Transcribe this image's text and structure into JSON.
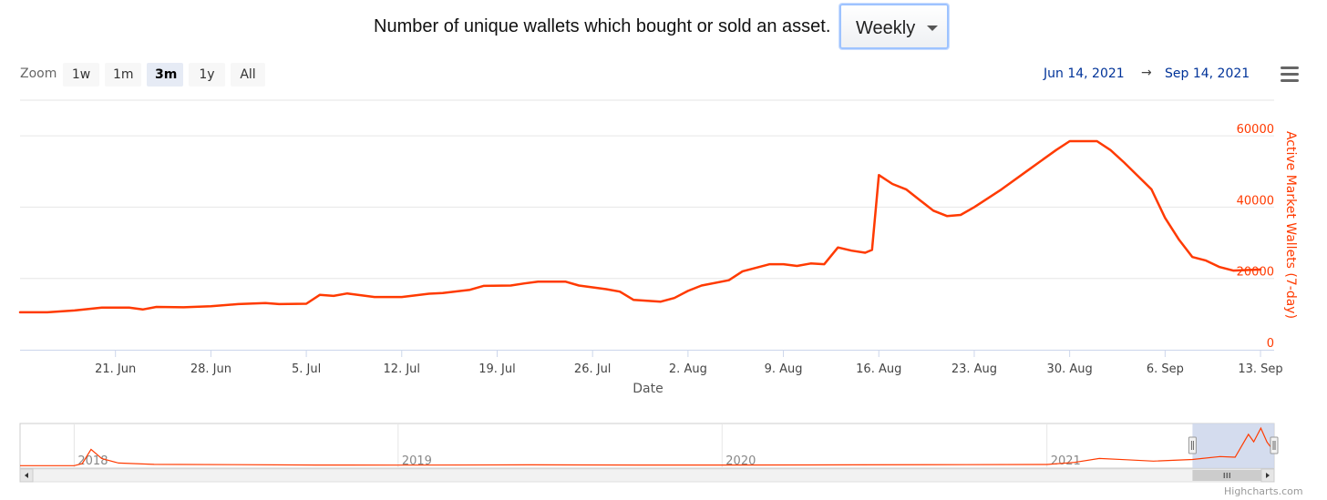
{
  "header": {
    "text": "Number of unique wallets which bought or sold an asset.",
    "select_value": "Weekly"
  },
  "zoom": {
    "label": "Zoom",
    "buttons": [
      "1w",
      "1m",
      "3m",
      "1y",
      "All"
    ],
    "active": "3m"
  },
  "range": {
    "from": "Jun 14, 2021",
    "arrow": "→",
    "to": "Sep 14, 2021"
  },
  "menu_icon": "hamburger-menu-icon",
  "credits": "Highcharts.com",
  "colors": {
    "series": "#ff3a00",
    "axis_title": "#ff3a00",
    "range_text": "#003399",
    "navigator_mask": "#ccd6eb"
  },
  "chart_data": {
    "type": "line",
    "title": "",
    "xlabel": "Date",
    "ylabel": "Active Market Wallets (7-day)",
    "xlim": [
      "2021-06-14",
      "2021-09-14"
    ],
    "ylim": [
      0,
      70000
    ],
    "y_ticks": [
      0,
      20000,
      40000,
      60000
    ],
    "y_tick_labels": [
      "0",
      "20000",
      "40000",
      "60000"
    ],
    "y_axis_side": "right",
    "x_ticks": [
      "2021-06-21",
      "2021-06-28",
      "2021-07-05",
      "2021-07-12",
      "2021-07-19",
      "2021-07-26",
      "2021-08-02",
      "2021-08-09",
      "2021-08-16",
      "2021-08-23",
      "2021-08-30",
      "2021-09-06",
      "2021-09-13"
    ],
    "x_tick_labels": [
      "21. Jun",
      "28. Jun",
      "5. Jul",
      "12. Jul",
      "19. Jul",
      "26. Jul",
      "2. Aug",
      "9. Aug",
      "16. Aug",
      "23. Aug",
      "30. Aug",
      "6. Sep",
      "13. Sep"
    ],
    "grid": true,
    "legend": "none",
    "series": [
      {
        "color": "#ff3a00",
        "points": [
          [
            "2021-06-14",
            10500
          ],
          [
            "2021-06-16",
            10500
          ],
          [
            "2021-06-18",
            11000
          ],
          [
            "2021-06-20",
            11800
          ],
          [
            "2021-06-22",
            11800
          ],
          [
            "2021-06-23",
            11300
          ],
          [
            "2021-06-24",
            12000
          ],
          [
            "2021-06-26",
            11900
          ],
          [
            "2021-06-28",
            12200
          ],
          [
            "2021-06-30",
            12800
          ],
          [
            "2021-07-02",
            13100
          ],
          [
            "2021-07-03",
            12800
          ],
          [
            "2021-07-05",
            12900
          ],
          [
            "2021-07-06",
            15400
          ],
          [
            "2021-07-07",
            15100
          ],
          [
            "2021-07-08",
            15800
          ],
          [
            "2021-07-10",
            14800
          ],
          [
            "2021-07-12",
            14800
          ],
          [
            "2021-07-14",
            15700
          ],
          [
            "2021-07-15",
            15900
          ],
          [
            "2021-07-17",
            16800
          ],
          [
            "2021-07-18",
            17900
          ],
          [
            "2021-07-20",
            18000
          ],
          [
            "2021-07-21",
            18600
          ],
          [
            "2021-07-22",
            19100
          ],
          [
            "2021-07-24",
            19100
          ],
          [
            "2021-07-25",
            18000
          ],
          [
            "2021-07-27",
            17000
          ],
          [
            "2021-07-28",
            16300
          ],
          [
            "2021-07-29",
            14000
          ],
          [
            "2021-07-31",
            13500
          ],
          [
            "2021-08-01",
            14500
          ],
          [
            "2021-08-02",
            16500
          ],
          [
            "2021-08-03",
            18000
          ],
          [
            "2021-08-05",
            19500
          ],
          [
            "2021-08-06",
            22000
          ],
          [
            "2021-08-08",
            24000
          ],
          [
            "2021-08-09",
            24000
          ],
          [
            "2021-08-10",
            23500
          ],
          [
            "2021-08-11",
            24200
          ],
          [
            "2021-08-12",
            24000
          ],
          [
            "2021-08-13",
            28700
          ],
          [
            "2021-08-14",
            27800
          ],
          [
            "2021-08-15",
            27200
          ],
          [
            "2021-08-15T12",
            28000
          ],
          [
            "2021-08-16",
            49000
          ],
          [
            "2021-08-17",
            46500
          ],
          [
            "2021-08-18",
            45000
          ],
          [
            "2021-08-19",
            42000
          ],
          [
            "2021-08-20",
            39000
          ],
          [
            "2021-08-21",
            37500
          ],
          [
            "2021-08-22",
            37800
          ],
          [
            "2021-08-23",
            40000
          ],
          [
            "2021-08-25",
            45000
          ],
          [
            "2021-08-27",
            50500
          ],
          [
            "2021-08-29",
            56000
          ],
          [
            "2021-08-30",
            58500
          ],
          [
            "2021-09-01",
            58500
          ],
          [
            "2021-09-02",
            56000
          ],
          [
            "2021-09-03",
            52500
          ],
          [
            "2021-09-05",
            45000
          ],
          [
            "2021-09-06",
            37000
          ],
          [
            "2021-09-07",
            31000
          ],
          [
            "2021-09-08",
            26000
          ],
          [
            "2021-09-09",
            25000
          ],
          [
            "2021-09-10",
            23200
          ],
          [
            "2021-09-11",
            22200
          ],
          [
            "2021-09-13",
            22500
          ]
        ]
      }
    ],
    "navigator": {
      "x_labels": [
        "2018",
        "2019",
        "2020",
        "2021"
      ],
      "xlim": [
        "2017-11-01",
        "2021-09-14"
      ],
      "selected_range": [
        "2021-06-14",
        "2021-09-14"
      ],
      "points": [
        [
          "2017-11-01",
          1000
        ],
        [
          "2018-01-01",
          1000
        ],
        [
          "2018-01-10",
          4000
        ],
        [
          "2018-01-20",
          26000
        ],
        [
          "2018-02-01",
          12000
        ],
        [
          "2018-02-20",
          5000
        ],
        [
          "2018-04-01",
          3000
        ],
        [
          "2018-07-01",
          2500
        ],
        [
          "2018-10-01",
          2000
        ],
        [
          "2019-01-01",
          1800
        ],
        [
          "2019-06-01",
          2200
        ],
        [
          "2019-10-01",
          2000
        ],
        [
          "2020-01-01",
          2000
        ],
        [
          "2020-06-01",
          2200
        ],
        [
          "2020-10-01",
          2500
        ],
        [
          "2021-01-01",
          2800
        ],
        [
          "2021-02-01",
          6000
        ],
        [
          "2021-03-01",
          12000
        ],
        [
          "2021-04-01",
          10000
        ],
        [
          "2021-05-01",
          8000
        ],
        [
          "2021-06-14",
          10500
        ],
        [
          "2021-07-15",
          15000
        ],
        [
          "2021-08-01",
          14000
        ],
        [
          "2021-08-16",
          49000
        ],
        [
          "2021-08-22",
          37500
        ],
        [
          "2021-08-30",
          58500
        ],
        [
          "2021-09-06",
          37000
        ],
        [
          "2021-09-14",
          22500
        ]
      ]
    }
  }
}
